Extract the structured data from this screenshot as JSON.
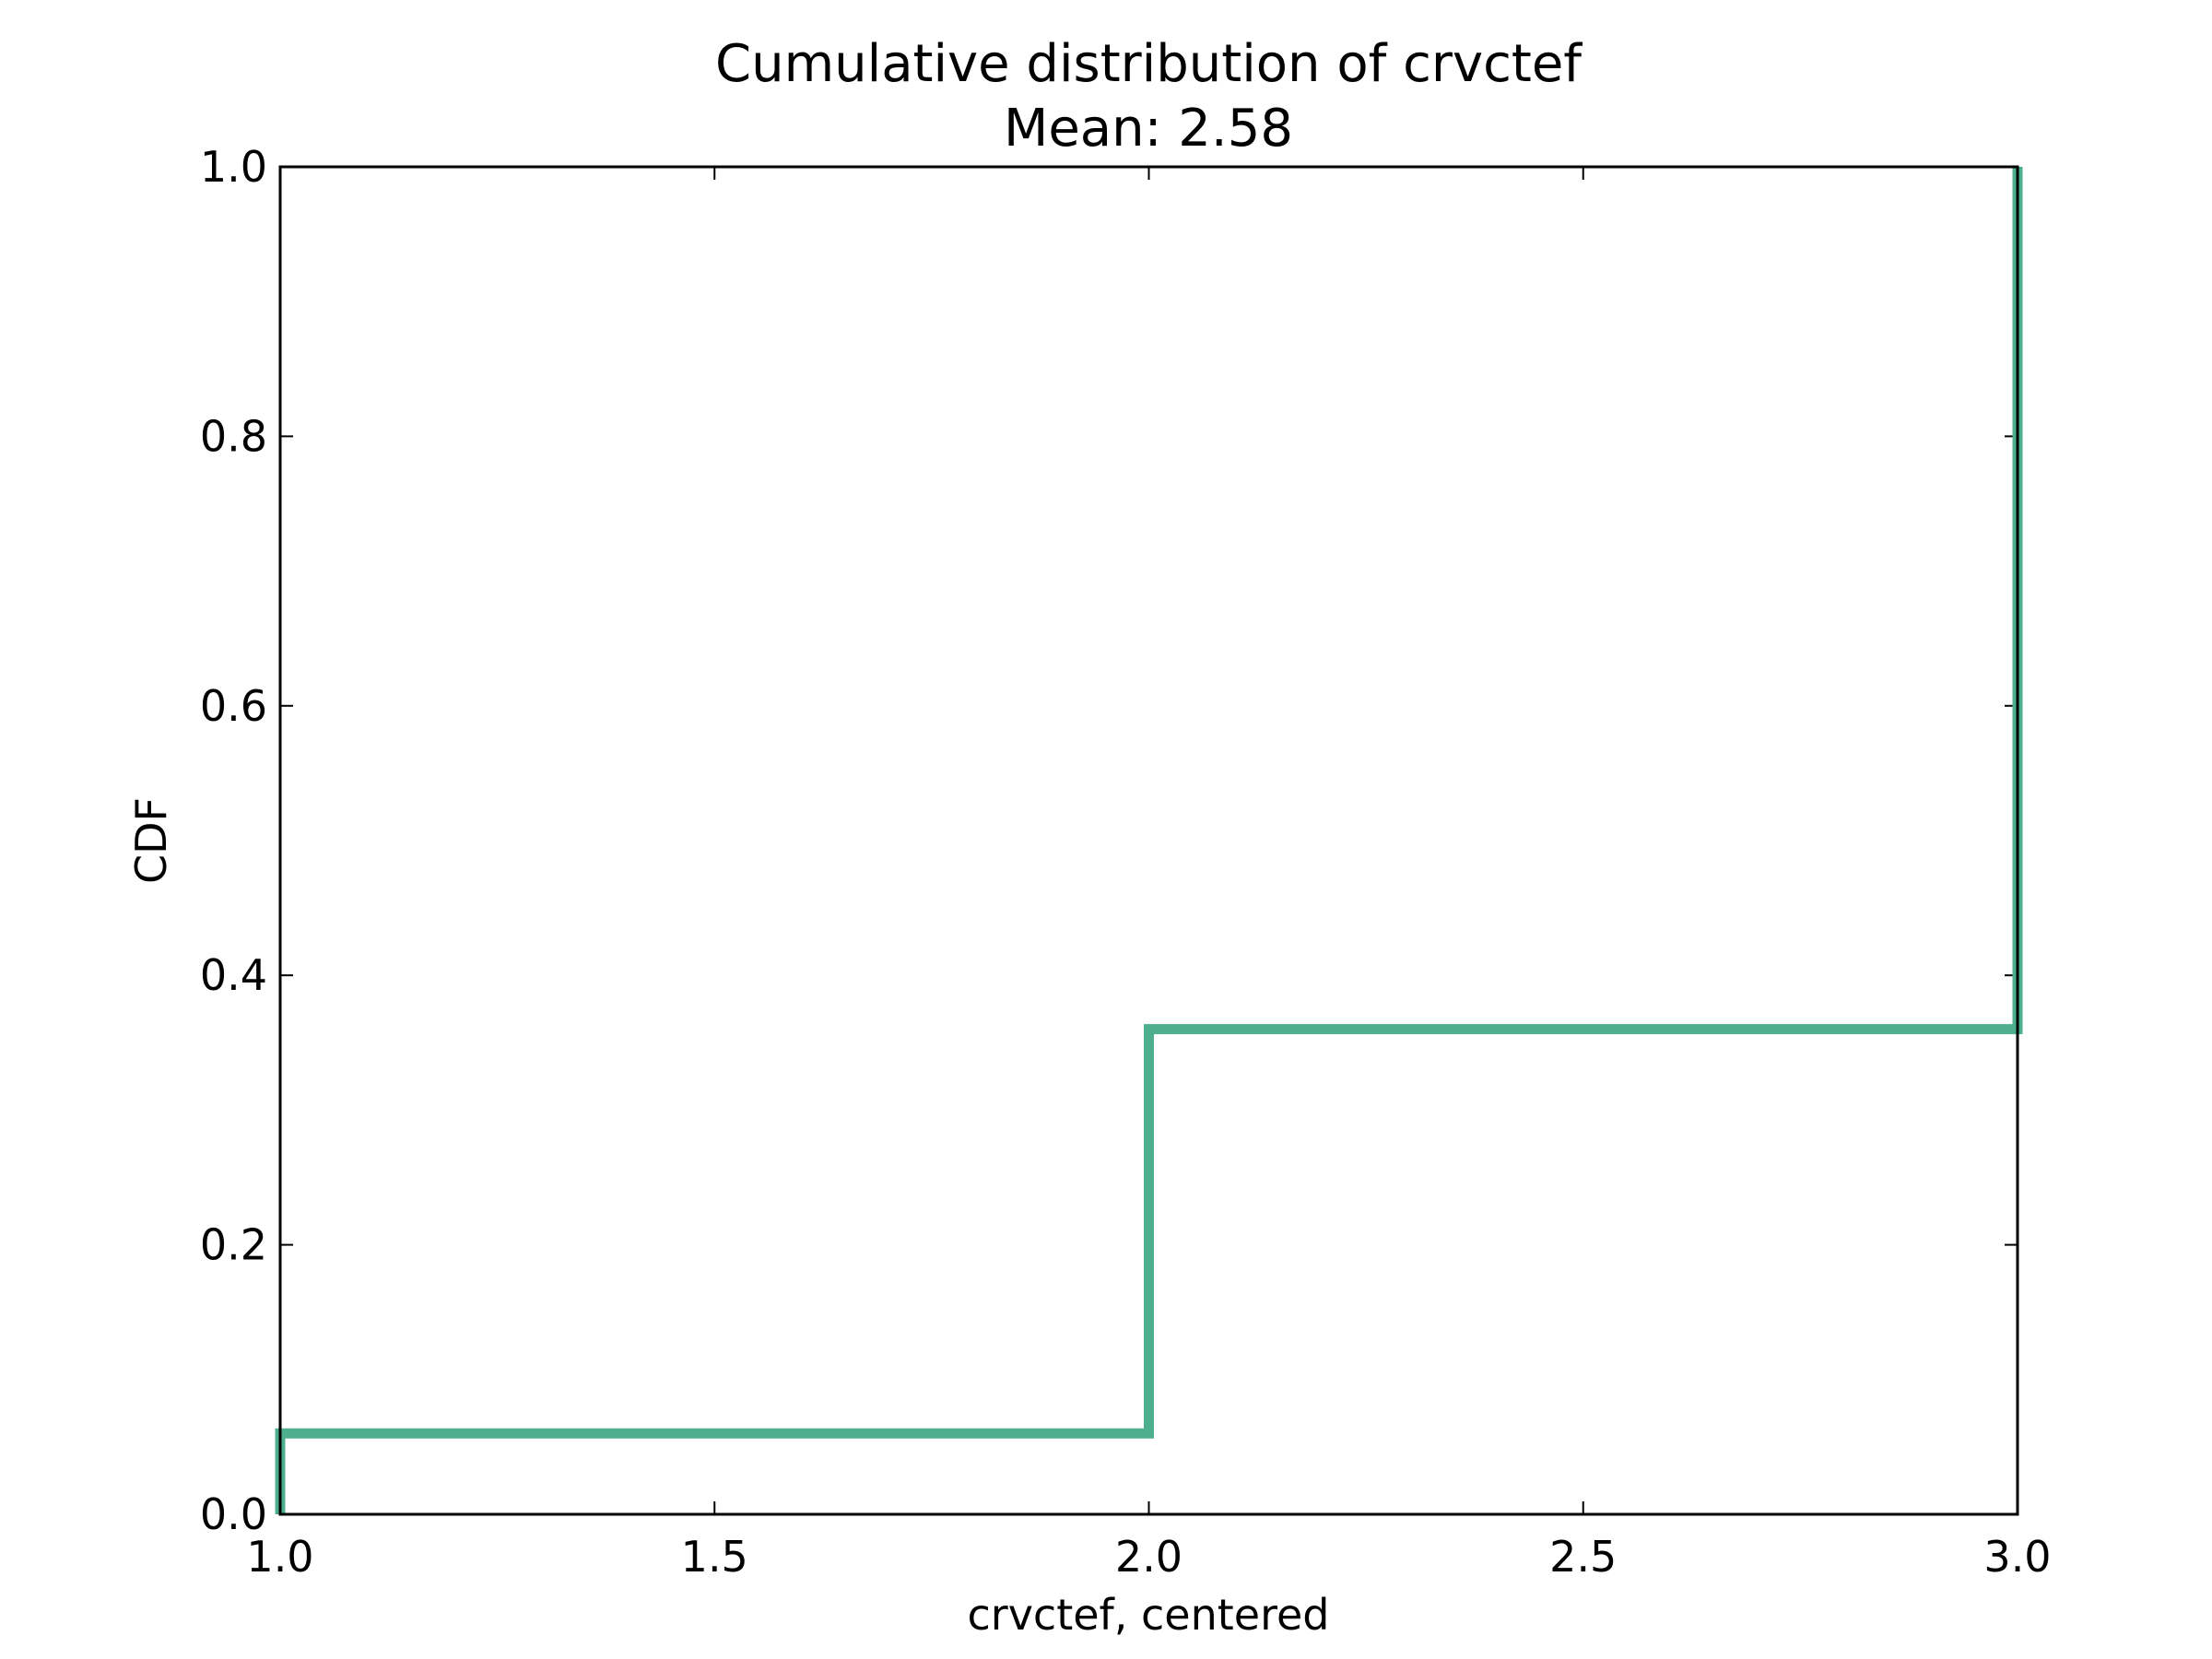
{
  "chart_data": {
    "type": "line",
    "title": "Cumulative distribution of crvctef",
    "subtitle": "Mean: 2.58",
    "xlabel": "crvctef, centered",
    "ylabel": "CDF",
    "xlim": [
      1.0,
      3.0
    ],
    "ylim": [
      0.0,
      1.0
    ],
    "x_ticks": [
      "1.0",
      "1.5",
      "2.0",
      "2.5",
      "3.0"
    ],
    "y_ticks": [
      "0.0",
      "0.2",
      "0.4",
      "0.6",
      "0.8",
      "1.0"
    ],
    "grid": false,
    "legend": "none",
    "step": true,
    "series": [
      {
        "color": "#4daf8e",
        "points": [
          [
            1.0,
            0.0
          ],
          [
            1.0,
            0.06
          ],
          [
            2.0,
            0.06
          ],
          [
            2.0,
            0.36
          ],
          [
            3.0,
            0.36
          ],
          [
            3.0,
            1.0
          ]
        ]
      }
    ]
  }
}
